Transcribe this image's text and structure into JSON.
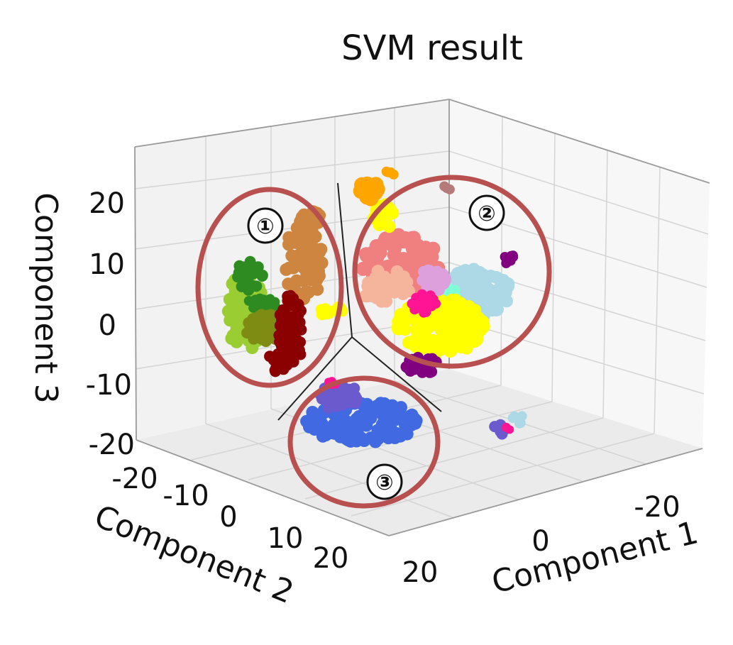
{
  "chart_data": {
    "type": "scatter",
    "projection": "3d",
    "title": "SVM result",
    "xlabel": "Component 1",
    "ylabel": "Component 2",
    "zlabel": "Component 3",
    "x_ticks": [
      "-20",
      "0",
      "20"
    ],
    "y_ticks": [
      "-20",
      "-10",
      "0",
      "10",
      "20"
    ],
    "z_ticks": [
      "20",
      "10",
      "0",
      "-10",
      "-20"
    ],
    "grid": true,
    "legend": "none",
    "clusters": [
      {
        "label": "①",
        "groups": [
          "forestgreen",
          "yellowgreen",
          "olive",
          "peru",
          "maroon"
        ]
      },
      {
        "label": "②",
        "groups": [
          "lightcoral",
          "lightblue",
          "yellow",
          "aquamarine",
          "deeppink",
          "purple",
          "plum"
        ]
      },
      {
        "label": "③",
        "groups": [
          "royalblue",
          "slateblue"
        ]
      }
    ],
    "colors": {
      "forestgreen": "#2e8b22",
      "yellowgreen": "#9acd32",
      "olive": "#7f8c13",
      "peru": "#cd853f",
      "maroon": "#8b0000",
      "lightcoral": "#f08080",
      "lightblue": "#add8e6",
      "yellow": "#ffff00",
      "aquamarine": "#7fffd4",
      "deeppink": "#ff1493",
      "purple": "#800080",
      "plum": "#dda0dd",
      "royalblue": "#4169e1",
      "slateblue": "#6a5acd",
      "orange": "#ffa500",
      "circle": "#b85050"
    }
  }
}
